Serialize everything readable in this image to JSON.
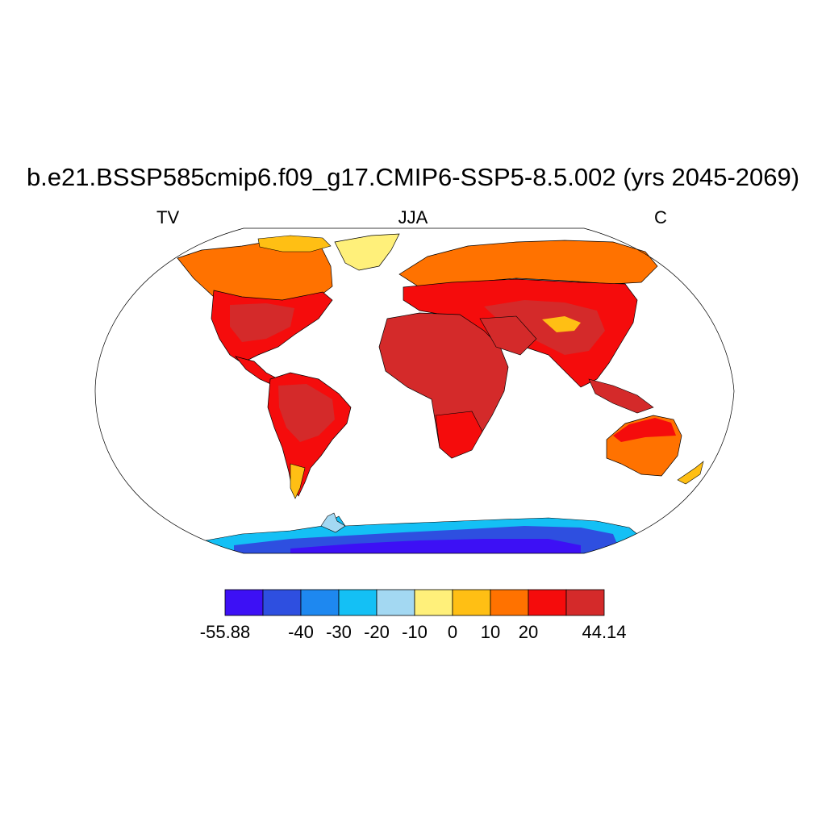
{
  "title": "b.e21.BSSP585cmip6.f09_g17.CMIP6-SSP5-8.5.002 (yrs 2045-2069)",
  "left_label": "TV",
  "center_label": "JJA",
  "right_label": "C",
  "colorbar": {
    "colors": [
      "#3d10f5",
      "#2e4fe0",
      "#1e88f0",
      "#14c0f5",
      "#a3d8f2",
      "#fff07a",
      "#ffbf14",
      "#ff7200",
      "#f50c0c",
      "#d42a2a"
    ],
    "labels": [
      "-55.88",
      "-40",
      "-30",
      "-20",
      "-10",
      "0",
      "10",
      "20",
      "44.14"
    ],
    "label_positions": [
      0,
      2,
      3,
      4,
      5,
      6,
      7,
      8,
      10
    ]
  }
}
